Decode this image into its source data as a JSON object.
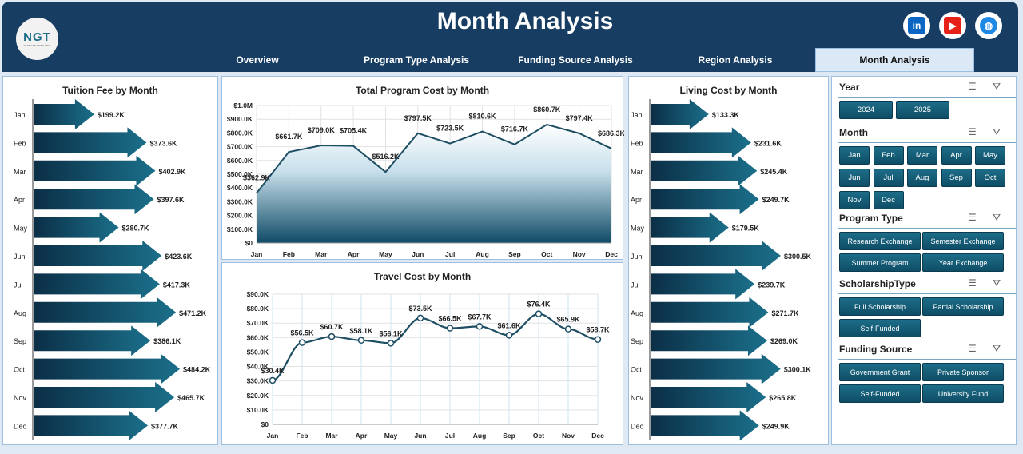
{
  "header": {
    "title": "Month Analysis",
    "logo_text": "NGT",
    "logo_sub": "NEXT GEN TEMPLATES"
  },
  "social": [
    {
      "name": "linkedin",
      "label": "in",
      "color": "#0a66c2"
    },
    {
      "name": "youtube",
      "label": "▶",
      "color": "#e62117"
    },
    {
      "name": "website",
      "label": "◍",
      "color": "#1e88e5"
    }
  ],
  "tabs": [
    {
      "label": "Overview"
    },
    {
      "label": "Program Type Analysis"
    },
    {
      "label": "Funding Source Analysis"
    },
    {
      "label": "Region Analysis"
    },
    {
      "label": "Month Analysis",
      "active": true
    }
  ],
  "months": [
    "Jan",
    "Feb",
    "Mar",
    "Apr",
    "May",
    "Jun",
    "Jul",
    "Aug",
    "Sep",
    "Oct",
    "Nov",
    "Dec"
  ],
  "chart_data": [
    {
      "type": "bar",
      "orientation": "horizontal",
      "title": "Tuition Fee by Month",
      "categories": [
        "Jan",
        "Feb",
        "Mar",
        "Apr",
        "May",
        "Jun",
        "Jul",
        "Aug",
        "Sep",
        "Oct",
        "Nov",
        "Dec"
      ],
      "values": [
        199.2,
        373.6,
        402.9,
        397.6,
        280.7,
        423.6,
        417.3,
        471.2,
        386.1,
        484.2,
        465.7,
        377.7
      ],
      "labels": [
        "$199.2K",
        "$373.6K",
        "$402.9K",
        "$397.6K",
        "$280.7K",
        "$423.6K",
        "$417.3K",
        "$471.2K",
        "$386.1K",
        "$484.2K",
        "$465.7K",
        "$377.7K"
      ],
      "unit": "K$"
    },
    {
      "type": "area",
      "title": "Total Program Cost by Month",
      "categories": [
        "Jan",
        "Feb",
        "Mar",
        "Apr",
        "May",
        "Jun",
        "Jul",
        "Aug",
        "Sep",
        "Oct",
        "Nov",
        "Dec"
      ],
      "values": [
        362.9,
        661.7,
        709.0,
        705.4,
        516.2,
        797.5,
        723.5,
        810.6,
        716.7,
        860.7,
        797.4,
        686.3
      ],
      "labels": [
        "$362.9K",
        "$661.7K",
        "$709.0K",
        "$705.4K",
        "$516.2K",
        "$797.5K",
        "$723.5K",
        "$810.6K",
        "$716.7K",
        "$860.7K",
        "$797.4K",
        "$686.3K"
      ],
      "ylim": [
        0,
        1000
      ],
      "yticks": [
        "$0",
        "$100.0K",
        "$200.0K",
        "$300.0K",
        "$400.0K",
        "$500.0K",
        "$600.0K",
        "$700.0K",
        "$800.0K",
        "$900.0K",
        "$1.0M"
      ],
      "grid": true
    },
    {
      "type": "line",
      "title": "Travel Cost by Month",
      "categories": [
        "Jan",
        "Feb",
        "Mar",
        "Apr",
        "May",
        "Jun",
        "Jul",
        "Aug",
        "Sep",
        "Oct",
        "Nov",
        "Dec"
      ],
      "values": [
        30.4,
        56.5,
        60.7,
        58.1,
        56.1,
        73.5,
        66.5,
        67.7,
        61.6,
        76.4,
        65.9,
        58.7
      ],
      "labels": [
        "$30.4K",
        "$56.5K",
        "$60.7K",
        "$58.1K",
        "$56.1K",
        "$73.5K",
        "$66.5K",
        "$67.7K",
        "$61.6K",
        "$76.4K",
        "$65.9K",
        "$58.7K"
      ],
      "ylim": [
        0,
        90
      ],
      "yticks": [
        "$0",
        "$10.0K",
        "$20.0K",
        "$30.0K",
        "$40.0K",
        "$50.0K",
        "$60.0K",
        "$70.0K",
        "$80.0K",
        "$90.0K"
      ],
      "grid": true
    },
    {
      "type": "bar",
      "orientation": "horizontal",
      "title": "Living Cost by Month",
      "categories": [
        "Jan",
        "Feb",
        "Mar",
        "Apr",
        "May",
        "Jun",
        "Jul",
        "Aug",
        "Sep",
        "Oct",
        "Nov",
        "Dec"
      ],
      "values": [
        133.3,
        231.6,
        245.4,
        249.7,
        179.5,
        300.5,
        239.7,
        271.7,
        269.0,
        300.1,
        265.8,
        249.9
      ],
      "labels": [
        "$133.3K",
        "$231.6K",
        "$245.4K",
        "$249.7K",
        "$179.5K",
        "$300.5K",
        "$239.7K",
        "$271.7K",
        "$269.0K",
        "$300.1K",
        "$265.8K",
        "$249.9K"
      ],
      "unit": "K$"
    }
  ],
  "slicers": [
    {
      "title": "Year",
      "items": [
        "2024",
        "2025"
      ]
    },
    {
      "title": "Month",
      "items": [
        "Jan",
        "Feb",
        "Mar",
        "Apr",
        "May",
        "Jun",
        "Jul",
        "Aug",
        "Sep",
        "Oct",
        "Nov",
        "Dec"
      ]
    },
    {
      "title": "Program Type",
      "items": [
        "Research Exchange",
        "Semester Exchange",
        "Summer Program",
        "Year Exchange"
      ]
    },
    {
      "title": "ScholarshipType",
      "items": [
        "Full Scholarship",
        "Partial Scholarship",
        "Self-Funded"
      ]
    },
    {
      "title": "Funding Source",
      "items": [
        "Government Grant",
        "Private Sponsor",
        "Self-Funded",
        "University Fund"
      ]
    }
  ]
}
